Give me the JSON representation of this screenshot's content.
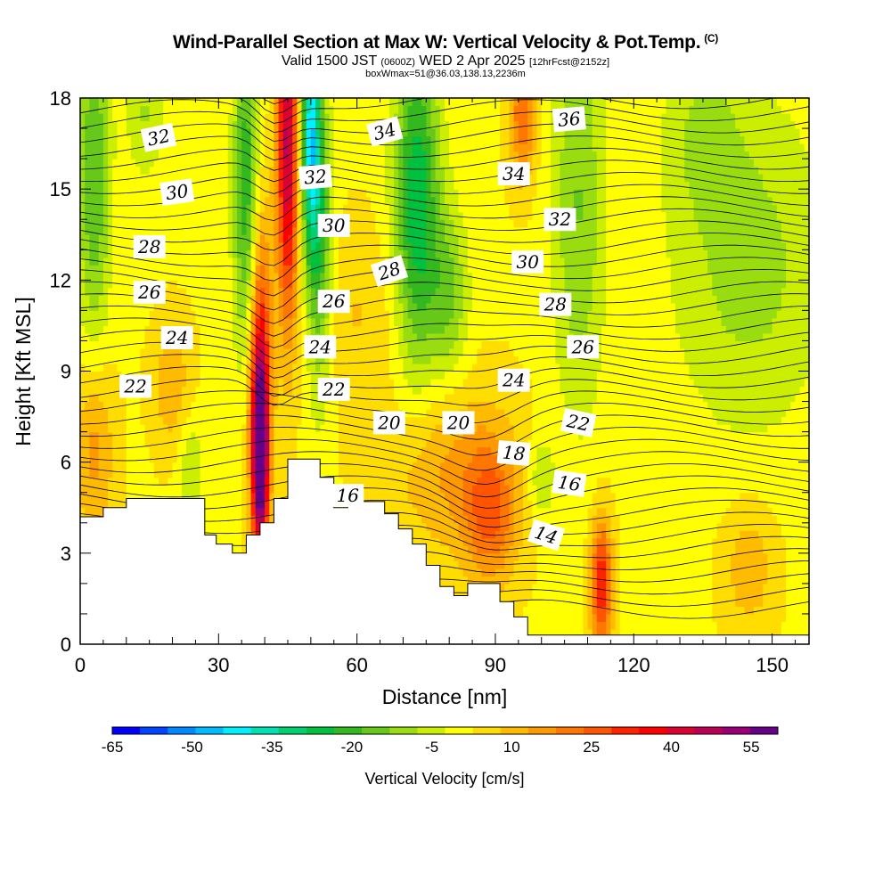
{
  "header": {
    "title": "Wind-Parallel Section at Max W: Vertical Velocity & Pot.Temp.",
    "title_unit": "(C)",
    "valid_prefix": "Valid 1500 JST",
    "valid_utc": "(0600Z)",
    "valid_date": "WED 2 Apr 2025",
    "forecast": "[12hrFcst@2152z]",
    "box": "boxWmax=51@36.03,138.13,2236m"
  },
  "chart_data": {
    "type": "heatmap",
    "xlabel": "Distance [nm]",
    "ylabel": "Height [Kft MSL]",
    "xlim": [
      0,
      158
    ],
    "ylim": [
      0,
      18
    ],
    "x_ticks": [
      0,
      30,
      60,
      90,
      120,
      150
    ],
    "y_ticks": [
      0,
      3,
      6,
      9,
      12,
      15,
      18
    ],
    "x_tick_labels": [
      "0",
      "30",
      "60",
      "90",
      "120",
      "150"
    ],
    "y_tick_labels": [
      "0",
      "3",
      "6",
      "9",
      "12",
      "15",
      "18"
    ],
    "colorbar": {
      "label": "Vertical Velocity [cm/s]",
      "range": [
        -65,
        60
      ],
      "tick_values": [
        -65,
        -50,
        -35,
        -20,
        -5,
        10,
        25,
        40,
        55
      ],
      "tick_labels": [
        "-65",
        "-50",
        "-35",
        "-20",
        "-5",
        "10",
        "25",
        "40",
        "55"
      ],
      "colors": [
        "#0000ff",
        "#0044ff",
        "#0088ff",
        "#00bbff",
        "#00f0ff",
        "#00e0b0",
        "#00d070",
        "#00c040",
        "#33b820",
        "#66c818",
        "#99dd10",
        "#ccee00",
        "#ffff00",
        "#ffdd00",
        "#ffbb00",
        "#ff9900",
        "#ff7700",
        "#ff5500",
        "#ff2200",
        "#ff0000",
        "#dd0033",
        "#bb0055",
        "#990077",
        "#660088"
      ]
    },
    "terrain_kft": [
      [
        0,
        4.2
      ],
      [
        5,
        4.2
      ],
      [
        5,
        4.5
      ],
      [
        10,
        4.5
      ],
      [
        10,
        4.8
      ],
      [
        27,
        4.8
      ],
      [
        27,
        3.6
      ],
      [
        29.5,
        3.6
      ],
      [
        29.5,
        3.3
      ],
      [
        33,
        3.3
      ],
      [
        33,
        3.0
      ],
      [
        36,
        3.0
      ],
      [
        36,
        3.6
      ],
      [
        39,
        3.6
      ],
      [
        39,
        4.0
      ],
      [
        42,
        4.0
      ],
      [
        42,
        4.8
      ],
      [
        45,
        4.8
      ],
      [
        45,
        6.1
      ],
      [
        52,
        6.1
      ],
      [
        52,
        5.5
      ],
      [
        55,
        5.5
      ],
      [
        55,
        4.5
      ],
      [
        58,
        4.5
      ],
      [
        58,
        4.7
      ],
      [
        66,
        4.7
      ],
      [
        66,
        4.3
      ],
      [
        69,
        4.3
      ],
      [
        69,
        3.8
      ],
      [
        72,
        3.8
      ],
      [
        72,
        3.3
      ],
      [
        75,
        3.3
      ],
      [
        75,
        2.6
      ],
      [
        78,
        2.6
      ],
      [
        78,
        1.9
      ],
      [
        81,
        1.9
      ],
      [
        81,
        1.6
      ],
      [
        84,
        1.6
      ],
      [
        84,
        2.0
      ],
      [
        91,
        2.0
      ],
      [
        91,
        1.4
      ],
      [
        94,
        1.4
      ],
      [
        94,
        0.9
      ],
      [
        97,
        0.9
      ],
      [
        97,
        0.3
      ],
      [
        158,
        0.3
      ]
    ],
    "velocity_features": [
      {
        "x": 39,
        "y": 6.2,
        "sx": 1.2,
        "sy": 2.2,
        "w": 62
      },
      {
        "x": 39,
        "y": 9.5,
        "sx": 1.8,
        "sy": 3.5,
        "w": 30
      },
      {
        "x": 45,
        "y": 16.5,
        "sx": 1.6,
        "sy": 4.0,
        "w": 45
      },
      {
        "x": 50,
        "y": 17.0,
        "sx": 1.5,
        "sy": 3.0,
        "w": -40
      },
      {
        "x": 52,
        "y": 13.0,
        "sx": 2.0,
        "sy": 3.5,
        "w": -22
      },
      {
        "x": 36,
        "y": 15.0,
        "sx": 2.0,
        "sy": 4.0,
        "w": -25
      },
      {
        "x": 3,
        "y": 15.5,
        "sx": 2.5,
        "sy": 4.0,
        "w": -20
      },
      {
        "x": 14,
        "y": 17.5,
        "sx": 3.0,
        "sy": 1.5,
        "w": -10
      },
      {
        "x": 73,
        "y": 14.5,
        "sx": 3.5,
        "sy": 4.0,
        "w": -30
      },
      {
        "x": 80,
        "y": 11.5,
        "sx": 3.0,
        "sy": 2.0,
        "w": -15
      },
      {
        "x": 108,
        "y": 14.5,
        "sx": 4.0,
        "sy": 5.0,
        "w": -15
      },
      {
        "x": 145,
        "y": 12.5,
        "sx": 12.0,
        "sy": 4.0,
        "w": -12
      },
      {
        "x": 135,
        "y": 17.0,
        "sx": 6.0,
        "sy": 2.0,
        "w": -8
      },
      {
        "x": 96,
        "y": 17.5,
        "sx": 2.0,
        "sy": 1.5,
        "w": 22
      },
      {
        "x": 113,
        "y": 2.0,
        "sx": 1.6,
        "sy": 1.5,
        "w": 32
      },
      {
        "x": 89,
        "y": 4.3,
        "sx": 4.0,
        "sy": 1.6,
        "w": 20
      },
      {
        "x": 100,
        "y": 5.5,
        "sx": 2.0,
        "sy": 1.0,
        "w": -10
      },
      {
        "x": 80,
        "y": 5.8,
        "sx": 10.0,
        "sy": 2.0,
        "w": 12
      },
      {
        "x": 3,
        "y": 6.5,
        "sx": 3.0,
        "sy": 2.0,
        "w": 14
      },
      {
        "x": 20,
        "y": 8.5,
        "sx": 3.0,
        "sy": 1.5,
        "w": 10
      },
      {
        "x": 145,
        "y": 2.5,
        "sx": 4.0,
        "sy": 1.5,
        "w": 10
      },
      {
        "x": 24,
        "y": 5.5,
        "sx": 2.0,
        "sy": 1.5,
        "w": -10
      },
      {
        "x": 60,
        "y": 11.0,
        "sx": 8.0,
        "sy": 2.0,
        "w": 6
      }
    ],
    "isentrope_labels": [
      {
        "value": "32",
        "x": 17,
        "y": 16.7,
        "angle": 12
      },
      {
        "value": "30",
        "x": 21,
        "y": 14.9,
        "angle": 8
      },
      {
        "value": "28",
        "x": 15,
        "y": 13.1,
        "angle": 0
      },
      {
        "value": "26",
        "x": 15,
        "y": 11.6,
        "angle": 0
      },
      {
        "value": "24",
        "x": 21,
        "y": 10.1,
        "angle": 0
      },
      {
        "value": "22",
        "x": 12,
        "y": 8.5,
        "angle": 0
      },
      {
        "value": "32",
        "x": 51,
        "y": 15.4,
        "angle": 5
      },
      {
        "value": "30",
        "x": 55,
        "y": 13.8,
        "angle": 0
      },
      {
        "value": "28",
        "x": 67,
        "y": 12.3,
        "angle": 18
      },
      {
        "value": "26",
        "x": 55,
        "y": 11.3,
        "angle": 0
      },
      {
        "value": "24",
        "x": 52,
        "y": 9.8,
        "angle": 0
      },
      {
        "value": "22",
        "x": 55,
        "y": 8.4,
        "angle": 0
      },
      {
        "value": "20",
        "x": 67,
        "y": 7.3,
        "angle": 0
      },
      {
        "value": "16",
        "x": 58,
        "y": 4.9,
        "angle": 0
      },
      {
        "value": "34",
        "x": 66,
        "y": 16.9,
        "angle": 15
      },
      {
        "value": "36",
        "x": 106,
        "y": 17.3,
        "angle": 5
      },
      {
        "value": "34",
        "x": 94,
        "y": 15.5,
        "angle": 0
      },
      {
        "value": "32",
        "x": 104,
        "y": 14.0,
        "angle": 0
      },
      {
        "value": "30",
        "x": 97,
        "y": 12.6,
        "angle": 0
      },
      {
        "value": "28",
        "x": 103,
        "y": 11.2,
        "angle": 0
      },
      {
        "value": "26",
        "x": 109,
        "y": 9.8,
        "angle": 0
      },
      {
        "value": "24",
        "x": 94,
        "y": 8.7,
        "angle": 0
      },
      {
        "value": "20",
        "x": 82,
        "y": 7.3,
        "angle": 0
      },
      {
        "value": "22",
        "x": 108,
        "y": 7.3,
        "angle": -12
      },
      {
        "value": "18",
        "x": 94,
        "y": 6.3,
        "angle": -5
      },
      {
        "value": "16",
        "x": 106,
        "y": 5.3,
        "angle": -8
      },
      {
        "value": "14",
        "x": 101,
        "y": 3.6,
        "angle": -18
      }
    ]
  }
}
